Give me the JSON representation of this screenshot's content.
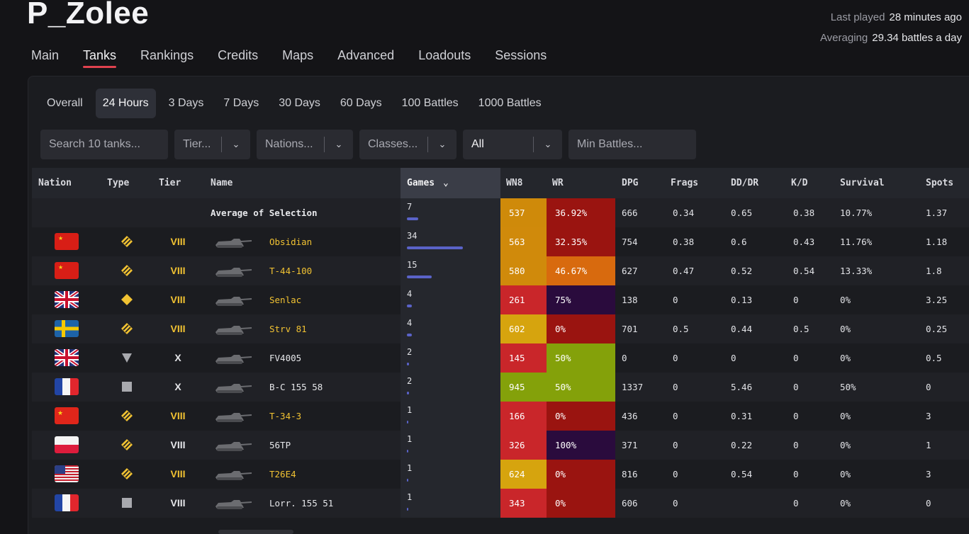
{
  "player": {
    "name": "P_Zolee"
  },
  "meta": {
    "last_played_label": "Last played",
    "last_played_value": "28 minutes ago",
    "averaging_label": "Averaging",
    "averaging_value": "29.34 battles a day"
  },
  "nav": {
    "tabs": [
      "Main",
      "Tanks",
      "Rankings",
      "Credits",
      "Maps",
      "Advanced",
      "Loadouts",
      "Sessions"
    ],
    "active": "Tanks"
  },
  "periods": {
    "items": [
      "Overall",
      "24 Hours",
      "3 Days",
      "7 Days",
      "30 Days",
      "60 Days",
      "100 Battles",
      "1000 Battles"
    ],
    "active": "24 Hours"
  },
  "filters": {
    "search_placeholder": "Search 10 tanks...",
    "tier_placeholder": "Tier...",
    "nations_placeholder": "Nations...",
    "classes_placeholder": "Classes...",
    "type_value": "All",
    "min_battles_placeholder": "Min Battles..."
  },
  "table": {
    "headers": [
      "Nation",
      "Type",
      "Tier",
      "Name",
      "Games",
      "WN8",
      "WR",
      "DPG",
      "Frags",
      "DD/DR",
      "K/D",
      "Survival",
      "Spots"
    ],
    "sorted_by": "Games",
    "average": {
      "label": "Average of Selection",
      "games": "7",
      "games_frac": 0.2,
      "wn8": "537",
      "wr": "36.92%",
      "dpg": "666",
      "frags": "0.34",
      "dddr": "0.65",
      "kd": "0.38",
      "survival": "10.77%",
      "spots": "1.37",
      "wn8_color": "#cf8a0a",
      "wr_color": "#9a1410"
    },
    "rows": [
      {
        "nation": "ussr",
        "type": "medium",
        "tier": "VIII",
        "name": "Obsidian",
        "premium": true,
        "games": "34",
        "games_frac": 1.0,
        "wn8": "563",
        "wr": "32.35%",
        "dpg": "754",
        "frags": "0.38",
        "dddr": "0.6",
        "kd": "0.43",
        "survival": "11.76%",
        "spots": "1.18",
        "wn8_color": "#d08a0b",
        "wr_color": "#9a1410"
      },
      {
        "nation": "ussr",
        "type": "medium",
        "tier": "VIII",
        "name": "T-44-100",
        "premium": true,
        "games": "15",
        "games_frac": 0.44,
        "wn8": "580",
        "wr": "46.67%",
        "dpg": "627",
        "frags": "0.47",
        "dddr": "0.52",
        "kd": "0.54",
        "survival": "13.33%",
        "spots": "1.8",
        "wn8_color": "#d08a0b",
        "wr_color": "#d86a0e"
      },
      {
        "nation": "uk",
        "type": "heavy",
        "tier": "VIII",
        "name": "Senlac",
        "premium": true,
        "games": "4",
        "games_frac": 0.09,
        "wn8": "261",
        "wr": "75%",
        "dpg": "138",
        "frags": "0",
        "dddr": "0.13",
        "kd": "0",
        "survival": "0%",
        "spots": "3.25",
        "wn8_color": "#c9262a",
        "wr_color": "#2a0b3d"
      },
      {
        "nation": "sweden",
        "type": "medium",
        "tier": "VIII",
        "name": "Strv 81",
        "premium": true,
        "games": "4",
        "games_frac": 0.09,
        "wn8": "602",
        "wr": "0%",
        "dpg": "701",
        "frags": "0.5",
        "dddr": "0.44",
        "kd": "0.5",
        "survival": "0%",
        "spots": "0.25",
        "wn8_color": "#d6a40e",
        "wr_color": "#9a1410"
      },
      {
        "nation": "uk",
        "type": "td",
        "tier": "X",
        "name": "FV4005",
        "premium": false,
        "games": "2",
        "games_frac": 0.04,
        "wn8": "145",
        "wr": "50%",
        "dpg": "0",
        "frags": "0",
        "dddr": "0",
        "kd": "0",
        "survival": "0%",
        "spots": "0.5",
        "wn8_color": "#c9262a",
        "wr_color": "#84a10a"
      },
      {
        "nation": "france",
        "type": "spg",
        "tier": "X",
        "name": "B-C 155 58",
        "premium": false,
        "games": "2",
        "games_frac": 0.04,
        "wn8": "945",
        "wr": "50%",
        "dpg": "1337",
        "frags": "0",
        "dddr": "5.46",
        "kd": "0",
        "survival": "50%",
        "spots": "0",
        "wn8_color": "#84a10a",
        "wr_color": "#84a10a"
      },
      {
        "nation": "china",
        "type": "medium",
        "tier": "VIII",
        "name": "T-34-3",
        "premium": true,
        "games": "1",
        "games_frac": 0.015,
        "wn8": "166",
        "wr": "0%",
        "dpg": "436",
        "frags": "0",
        "dddr": "0.31",
        "kd": "0",
        "survival": "0%",
        "spots": "3",
        "wn8_color": "#c9262a",
        "wr_color": "#9a1410"
      },
      {
        "nation": "poland",
        "type": "medium",
        "tier": "VIII",
        "name": "56TP",
        "premium": false,
        "games": "1",
        "games_frac": 0.015,
        "wn8": "326",
        "wr": "100%",
        "dpg": "371",
        "frags": "0",
        "dddr": "0.22",
        "kd": "0",
        "survival": "0%",
        "spots": "1",
        "wn8_color": "#c9262a",
        "wr_color": "#2a0b3d"
      },
      {
        "nation": "usa",
        "type": "medium",
        "tier": "VIII",
        "name": "T26E4",
        "premium": true,
        "games": "1",
        "games_frac": 0.015,
        "wn8": "624",
        "wr": "0%",
        "dpg": "816",
        "frags": "0",
        "dddr": "0.54",
        "kd": "0",
        "survival": "0%",
        "spots": "3",
        "wn8_color": "#d6a40e",
        "wr_color": "#9a1410"
      },
      {
        "nation": "france",
        "type": "spg",
        "tier": "VIII",
        "name": "Lorr. 155 51",
        "premium": false,
        "games": "1",
        "games_frac": 0.015,
        "wn8": "343",
        "wr": "0%",
        "dpg": "606",
        "frags": "0",
        "dddr": "",
        "kd": "0",
        "survival": "0%",
        "spots": "0",
        "wn8_color": "#c9262a",
        "wr_color": "#9a1410"
      }
    ]
  }
}
